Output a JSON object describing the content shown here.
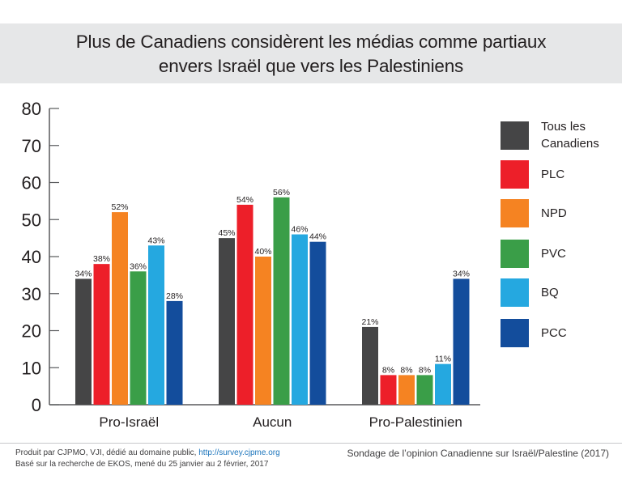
{
  "chart_data": {
    "type": "bar",
    "title": "Plus de Canadiens considèrent les médias comme partiaux envers Israël que vers les Palestiniens",
    "title_lines": [
      "Plus de Canadiens considèrent les médias comme partiaux",
      "envers Israël que vers les Palestiniens"
    ],
    "xlabel": "",
    "ylabel": "",
    "ylim": [
      0,
      80
    ],
    "yticks": [
      0,
      10,
      20,
      30,
      40,
      50,
      60,
      70,
      80
    ],
    "categories": [
      "Pro-Israël",
      "Aucun",
      "Pro-Palestinien"
    ],
    "series": [
      {
        "name": "Tous les Canadiens",
        "name_lines": [
          "Tous les",
          "Canadiens"
        ],
        "color": "#454546",
        "values": [
          34,
          45,
          21
        ]
      },
      {
        "name": "PLC",
        "name_lines": [
          "PLC"
        ],
        "color": "#ed1f29",
        "values": [
          38,
          54,
          8
        ]
      },
      {
        "name": "NPD",
        "name_lines": [
          "NPD"
        ],
        "color": "#f58322",
        "values": [
          52,
          40,
          8
        ]
      },
      {
        "name": "PVC",
        "name_lines": [
          "PVC"
        ],
        "color": "#3a9e48",
        "values": [
          36,
          56,
          8
        ]
      },
      {
        "name": "BQ",
        "name_lines": [
          "BQ"
        ],
        "color": "#25a8e0",
        "values": [
          43,
          46,
          11
        ]
      },
      {
        "name": "PCC",
        "name_lines": [
          "PCC"
        ],
        "color": "#134d9c",
        "values": [
          28,
          44,
          34
        ]
      }
    ],
    "value_label_suffix": "%",
    "grid": false,
    "legend_position": "right"
  },
  "footer": {
    "credit_text": "Produit par CJPMO, VJI, dédié au domaine public, ",
    "credit_link": "http://survey.cjpme.org",
    "source_text": "Basé sur la recherche de EKOS, mené du 25 janvier au 2 février, 2017",
    "survey_title": "Sondage de l’opinion Canadienne sur Israël/Palestine (2017)"
  }
}
